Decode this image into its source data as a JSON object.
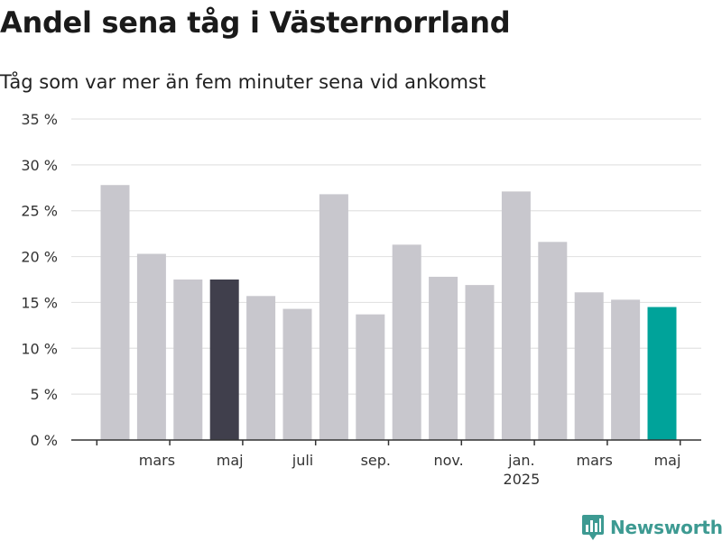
{
  "title": "Andel sena tåg i Västernorrland",
  "subtitle": "Tåg som var mer än fem minuter sena vid ankomst",
  "logo": {
    "text": "Newsworthy",
    "icon": "newsworthy-logo-icon"
  },
  "colors": {
    "bar_default": "#c8c7cd",
    "bar_highlight_dark": "#403f4c",
    "bar_highlight_accent": "#00a39a",
    "grid": "#e3e3e3",
    "axis": "#333333",
    "logo": "#3d9a92"
  },
  "chart_data": {
    "type": "bar",
    "title": "Andel sena tåg i Västernorrland",
    "subtitle": "Tåg som var mer än fem minuter sena vid ankomst",
    "ylim": [
      0,
      35
    ],
    "y_ticks": [
      0,
      5,
      10,
      15,
      20,
      25,
      30,
      35
    ],
    "y_tick_labels": [
      "0 %",
      "5 %",
      "10 %",
      "15 %",
      "20 %",
      "25 %",
      "30 %",
      "35 %"
    ],
    "grid": true,
    "categories": [
      "2024-02",
      "2024-03",
      "2024-04",
      "2024-05",
      "2024-06",
      "2024-07",
      "2024-08",
      "2024-09",
      "2024-10",
      "2024-11",
      "2024-12",
      "2025-01",
      "2025-02",
      "2025-03",
      "2025-04",
      "2025-05"
    ],
    "values": [
      27.8,
      20.3,
      17.5,
      17.5,
      15.7,
      14.3,
      26.8,
      13.7,
      21.3,
      17.8,
      16.9,
      27.1,
      21.6,
      16.1,
      15.3,
      14.5
    ],
    "highlight": {
      "2024-05": "bar_highlight_dark",
      "2025-05": "bar_highlight_accent"
    },
    "x_tick_labels": [
      {
        "category": "2024-03",
        "label": "mars"
      },
      {
        "category": "2024-05",
        "label": "maj"
      },
      {
        "category": "2024-07",
        "label": "juli"
      },
      {
        "category": "2024-09",
        "label": "sep."
      },
      {
        "category": "2024-11",
        "label": "nov."
      },
      {
        "category": "2025-01",
        "label": "jan.",
        "sublabel": "2025"
      },
      {
        "category": "2025-03",
        "label": "mars"
      },
      {
        "category": "2025-05",
        "label": "maj"
      }
    ]
  }
}
